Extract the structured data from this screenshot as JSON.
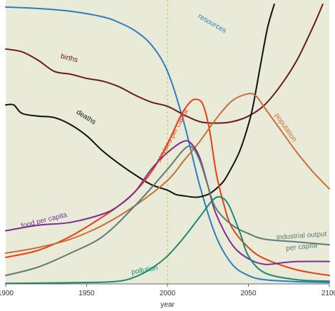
{
  "chart_data": {
    "type": "line",
    "xlabel": "year",
    "ylabel": "",
    "xlim": [
      1900,
      2100
    ],
    "ylim": [
      0,
      100
    ],
    "x_ticks": [
      "1900",
      "1950",
      "2000",
      "2050",
      "2100"
    ],
    "grid": false,
    "reference_line": {
      "x": 2000,
      "style": "dashed",
      "color": "#a8cf5c"
    },
    "plot_background": "#e9ebd8",
    "series": [
      {
        "name": "resources",
        "color": "#2a7fbf",
        "points": [
          [
            1900,
            99
          ],
          [
            1920,
            98.5
          ],
          [
            1940,
            97.5
          ],
          [
            1960,
            95.5
          ],
          [
            1970,
            93.5
          ],
          [
            1980,
            90.5
          ],
          [
            1990,
            85.5
          ],
          [
            2000,
            76
          ],
          [
            2010,
            58
          ],
          [
            2020,
            35
          ],
          [
            2030,
            17
          ],
          [
            2040,
            7
          ],
          [
            2050,
            3
          ],
          [
            2060,
            1.5
          ],
          [
            2080,
            0.8
          ],
          [
            2100,
            0.5
          ]
        ],
        "label": {
          "text": "resources",
          "x": 2027,
          "y": 92.5,
          "rotate": 30
        }
      },
      {
        "name": "births",
        "color": "#6b1b1f",
        "points": [
          [
            1900,
            84
          ],
          [
            1910,
            83
          ],
          [
            1920,
            80
          ],
          [
            1930,
            76
          ],
          [
            1940,
            75
          ],
          [
            1950,
            73.5
          ],
          [
            1960,
            72.5
          ],
          [
            1970,
            70.5
          ],
          [
            1980,
            67.5
          ],
          [
            1990,
            65
          ],
          [
            2000,
            63.5
          ],
          [
            2010,
            60.5
          ],
          [
            2020,
            58
          ],
          [
            2030,
            57.5
          ],
          [
            2040,
            58
          ],
          [
            2050,
            60
          ],
          [
            2060,
            64
          ],
          [
            2070,
            71
          ],
          [
            2080,
            80
          ],
          [
            2090,
            92
          ],
          [
            2096,
            100
          ]
        ],
        "label": {
          "text": "births",
          "x": 1939,
          "y": 80,
          "rotate": 14
        }
      },
      {
        "name": "deaths",
        "color": "#111111",
        "points": [
          [
            1900,
            64
          ],
          [
            1905,
            64
          ],
          [
            1910,
            61
          ],
          [
            1920,
            60
          ],
          [
            1930,
            59.5
          ],
          [
            1940,
            57
          ],
          [
            1950,
            53
          ],
          [
            1960,
            47.5
          ],
          [
            1970,
            43
          ],
          [
            1980,
            39
          ],
          [
            1990,
            35.5
          ],
          [
            2000,
            33.5
          ],
          [
            2005,
            32
          ],
          [
            2010,
            31.5
          ],
          [
            2018,
            31
          ],
          [
            2025,
            32
          ],
          [
            2030,
            34
          ],
          [
            2035,
            37
          ],
          [
            2040,
            42
          ],
          [
            2045,
            48
          ],
          [
            2050,
            57
          ],
          [
            2053,
            64
          ],
          [
            2058,
            80
          ],
          [
            2062,
            92
          ],
          [
            2066,
            100
          ]
        ],
        "label": {
          "text": "deaths",
          "x": 1949,
          "y": 59,
          "rotate": 32
        }
      },
      {
        "name": "services per capita",
        "color": "#e64016",
        "points": [
          [
            1900,
            9.5
          ],
          [
            1920,
            12
          ],
          [
            1940,
            17
          ],
          [
            1960,
            24
          ],
          [
            1970,
            28
          ],
          [
            1980,
            33
          ],
          [
            1990,
            40
          ],
          [
            2000,
            50
          ],
          [
            2008,
            60
          ],
          [
            2014,
            65
          ],
          [
            2018,
            66
          ],
          [
            2022,
            64
          ],
          [
            2026,
            55
          ],
          [
            2030,
            40
          ],
          [
            2035,
            28
          ],
          [
            2040,
            20
          ],
          [
            2050,
            13
          ],
          [
            2060,
            9
          ],
          [
            2080,
            5
          ],
          [
            2100,
            3
          ]
        ],
        "label": {
          "text": "services per capita",
          "x": 2004,
          "y": 52.5,
          "rotate": -62
        }
      },
      {
        "name": "population",
        "color": "#c77036",
        "points": [
          [
            1900,
            11
          ],
          [
            1920,
            13
          ],
          [
            1940,
            16
          ],
          [
            1960,
            21
          ],
          [
            1980,
            28
          ],
          [
            2000,
            37
          ],
          [
            2010,
            44
          ],
          [
            2020,
            51
          ],
          [
            2030,
            59
          ],
          [
            2040,
            65.5
          ],
          [
            2050,
            68
          ],
          [
            2055,
            67
          ],
          [
            2060,
            63
          ],
          [
            2070,
            55
          ],
          [
            2080,
            47
          ],
          [
            2090,
            40
          ],
          [
            2100,
            34
          ]
        ],
        "label": {
          "text": "population",
          "x": 2072,
          "y": 55.5,
          "rotate": 55
        }
      },
      {
        "name": "food per capita",
        "color": "#7b2f8f",
        "points": [
          [
            1900,
            19
          ],
          [
            1920,
            21
          ],
          [
            1940,
            22
          ],
          [
            1960,
            25
          ],
          [
            1970,
            28
          ],
          [
            1980,
            33
          ],
          [
            1990,
            41
          ],
          [
            2000,
            47
          ],
          [
            2010,
            51
          ],
          [
            2015,
            50
          ],
          [
            2020,
            45
          ],
          [
            2025,
            35
          ],
          [
            2030,
            25
          ],
          [
            2040,
            14
          ],
          [
            2050,
            9
          ],
          [
            2060,
            7
          ],
          [
            2070,
            7.5
          ],
          [
            2080,
            8
          ],
          [
            2100,
            8
          ]
        ],
        "label": {
          "text": "food per capita",
          "x": 1924,
          "y": 22,
          "rotate": -14
        }
      },
      {
        "name": "industrial output per capita",
        "color": "#5e7b75",
        "points": [
          [
            1900,
            3
          ],
          [
            1920,
            6
          ],
          [
            1940,
            11
          ],
          [
            1960,
            17
          ],
          [
            1980,
            28
          ],
          [
            2000,
            41
          ],
          [
            2010,
            48
          ],
          [
            2015,
            49
          ],
          [
            2020,
            44
          ],
          [
            2025,
            35
          ],
          [
            2030,
            27
          ],
          [
            2040,
            21
          ],
          [
            2050,
            18
          ],
          [
            2060,
            16
          ],
          [
            2080,
            15
          ],
          [
            2100,
            14
          ]
        ],
        "label": {
          "text": "industrial output",
          "x": 2083,
          "y": 16.5,
          "rotate": -4
        },
        "label2": {
          "text": "per capita",
          "x": 2083,
          "y": 12.5,
          "rotate": -6
        }
      },
      {
        "name": "pollution",
        "color": "#1a8a72",
        "points": [
          [
            1900,
            0.2
          ],
          [
            1950,
            0.5
          ],
          [
            1970,
            1
          ],
          [
            1980,
            2.5
          ],
          [
            1990,
            5.5
          ],
          [
            2000,
            10
          ],
          [
            2010,
            16.5
          ],
          [
            2020,
            24
          ],
          [
            2028,
            30
          ],
          [
            2033,
            31
          ],
          [
            2038,
            28
          ],
          [
            2045,
            18
          ],
          [
            2050,
            10
          ],
          [
            2060,
            4
          ],
          [
            2080,
            1.5
          ],
          [
            2100,
            1
          ]
        ],
        "label": {
          "text": "pollution",
          "x": 1986,
          "y": 4.2,
          "rotate": -10
        }
      }
    ]
  }
}
